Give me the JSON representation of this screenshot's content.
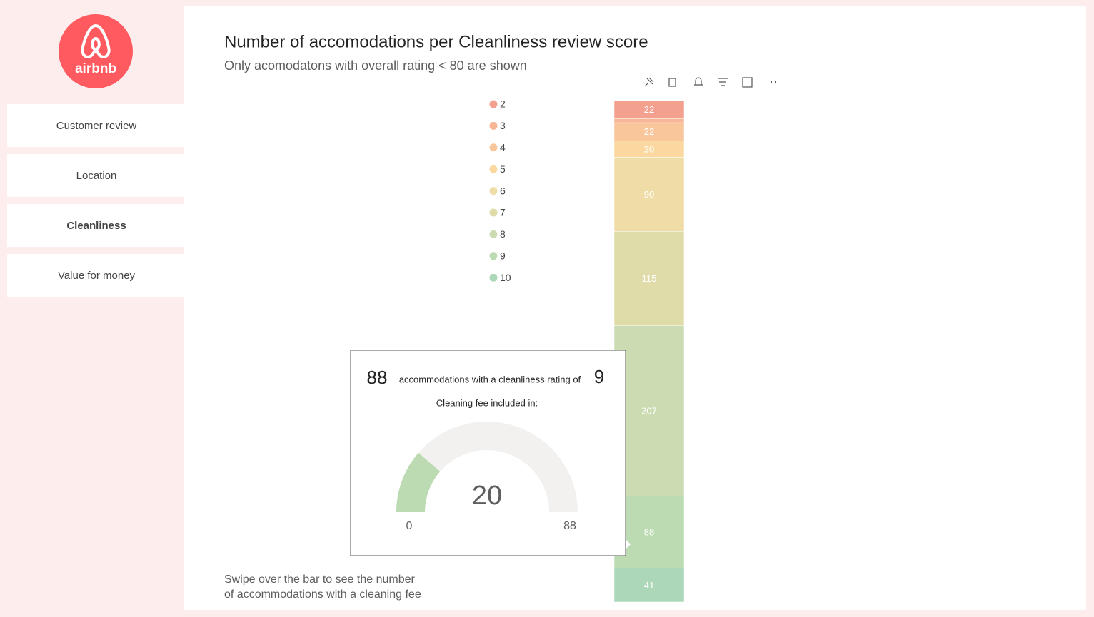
{
  "logo": {
    "text": "airbnb"
  },
  "nav": {
    "items": [
      "Customer review",
      "Location",
      "Cleanliness",
      "Value for money"
    ],
    "active": 2
  },
  "chart_data": {
    "type": "stacked_bar",
    "title": "Number of accomodations per Cleanliness review score",
    "subtitle": "Only acomodatons with overall rating < 80 are shown",
    "categories": [
      null
    ],
    "series": [
      {
        "name": "2",
        "color": "#f4a08e",
        "values": [
          22
        ]
      },
      {
        "name": "3",
        "color": "#f6b596",
        "values": [
          5
        ]
      },
      {
        "name": "4",
        "color": "#f9c69c",
        "values": [
          22
        ]
      },
      {
        "name": "5",
        "color": "#fbd89f",
        "values": [
          20
        ]
      },
      {
        "name": "6",
        "color": "#f0dca6",
        "values": [
          90
        ]
      },
      {
        "name": "7",
        "color": "#dfdcaa",
        "values": [
          115
        ]
      },
      {
        "name": "8",
        "color": "#cbdcb2",
        "values": [
          207
        ]
      },
      {
        "name": "9",
        "color": "#bcdbb2",
        "values": [
          88
        ]
      },
      {
        "name": "10",
        "color": "#acd7b8",
        "values": [
          41
        ]
      }
    ],
    "labeled": [
      true,
      false,
      true,
      true,
      true,
      true,
      true,
      true,
      true
    ]
  },
  "tooltip": {
    "count": 88,
    "text": "accommodations with a cleanliness rating of",
    "rating": 9,
    "subtitle": "Cleaning fee included in:",
    "gauge": {
      "value": 20,
      "min": 0,
      "max": 88,
      "color": "#bcdbb2",
      "track": "#f2f1f0"
    }
  },
  "note": [
    "Swipe over the bar to see the number",
    "of accommodations with a cleaning fee"
  ]
}
